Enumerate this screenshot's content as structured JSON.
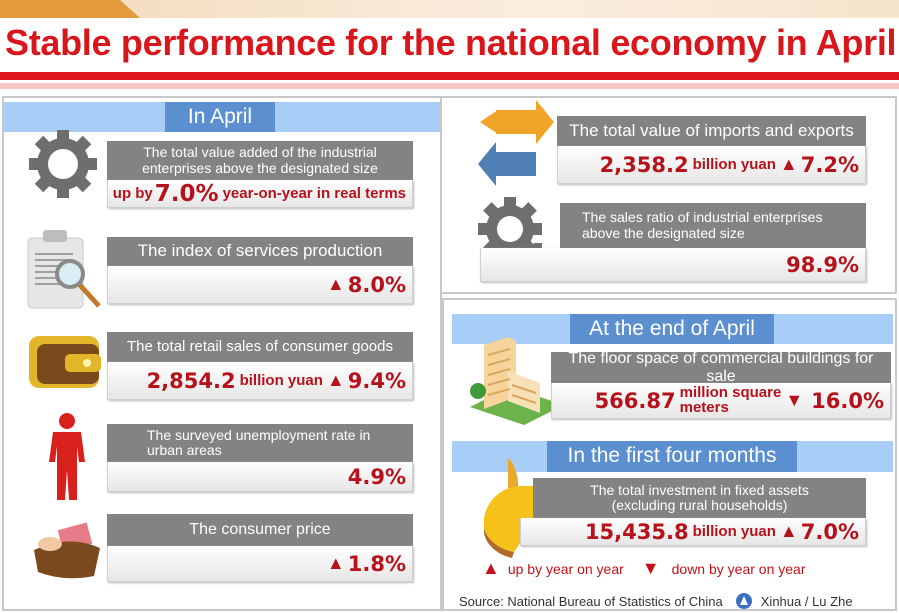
{
  "title": "Stable performance for the national economy in April",
  "colors": {
    "accent_red": "#d9161c",
    "header_blue": "#a8cdf7",
    "header_label_blue": "#5b8fd0",
    "label_gray": "#838383",
    "value_red": "#b5121b"
  },
  "left": {
    "header": "In April",
    "cards": [
      {
        "icon": "gear-icon",
        "label": "The total value added of the industrial enterprises above the designated size",
        "prefix": "up by",
        "value": "7.0%",
        "suffix": "year-on-year in real terms"
      },
      {
        "icon": "clipboard-magnifier-icon",
        "label": "The index of services production",
        "trend": "up",
        "value": "8.0%"
      },
      {
        "icon": "wallet-icon",
        "label": "The total retail sales of consumer goods",
        "value": "2,854.2",
        "unit": "billion yuan",
        "trend": "up",
        "change": "9.4%"
      },
      {
        "icon": "person-icon",
        "label": "The surveyed unemployment rate in urban areas",
        "value": "4.9%"
      },
      {
        "icon": "wallet-money-icon",
        "label": "The consumer price",
        "trend": "up",
        "value": "1.8%"
      }
    ]
  },
  "right_top": {
    "cards": [
      {
        "icon": "exchange-arrows-icon",
        "label": "The total value of imports and exports",
        "value": "2,358.2",
        "unit": "billion yuan",
        "trend": "up",
        "change": "7.2%"
      },
      {
        "icon": "gears-icon",
        "label": "The sales ratio of industrial enterprises above the designated size",
        "value": "98.9%"
      }
    ]
  },
  "right_bottom": {
    "header1": "At the end of April",
    "floor": {
      "icon": "building-icon",
      "label": "The floor space of commercial buildings for sale",
      "value": "566.87",
      "unit_line1": "million square",
      "unit_line2": "meters",
      "trend": "down",
      "change": "16.0%"
    },
    "header2": "In the first four months",
    "investment": {
      "icon": "pie-chart-icon",
      "label_line1": "The total investment in fixed assets",
      "label_line2": "(excluding rural households)",
      "value": "15,435.8",
      "unit": "billion yuan",
      "trend": "up",
      "change": "7.0%"
    },
    "legend": {
      "up": "up by year on year",
      "down": "down by year on year",
      "up_symbol": "▲",
      "down_symbol": "▼"
    },
    "source": "Source: National Bureau of Statistics of China",
    "credit": "Xinhua / Lu Zhe"
  }
}
